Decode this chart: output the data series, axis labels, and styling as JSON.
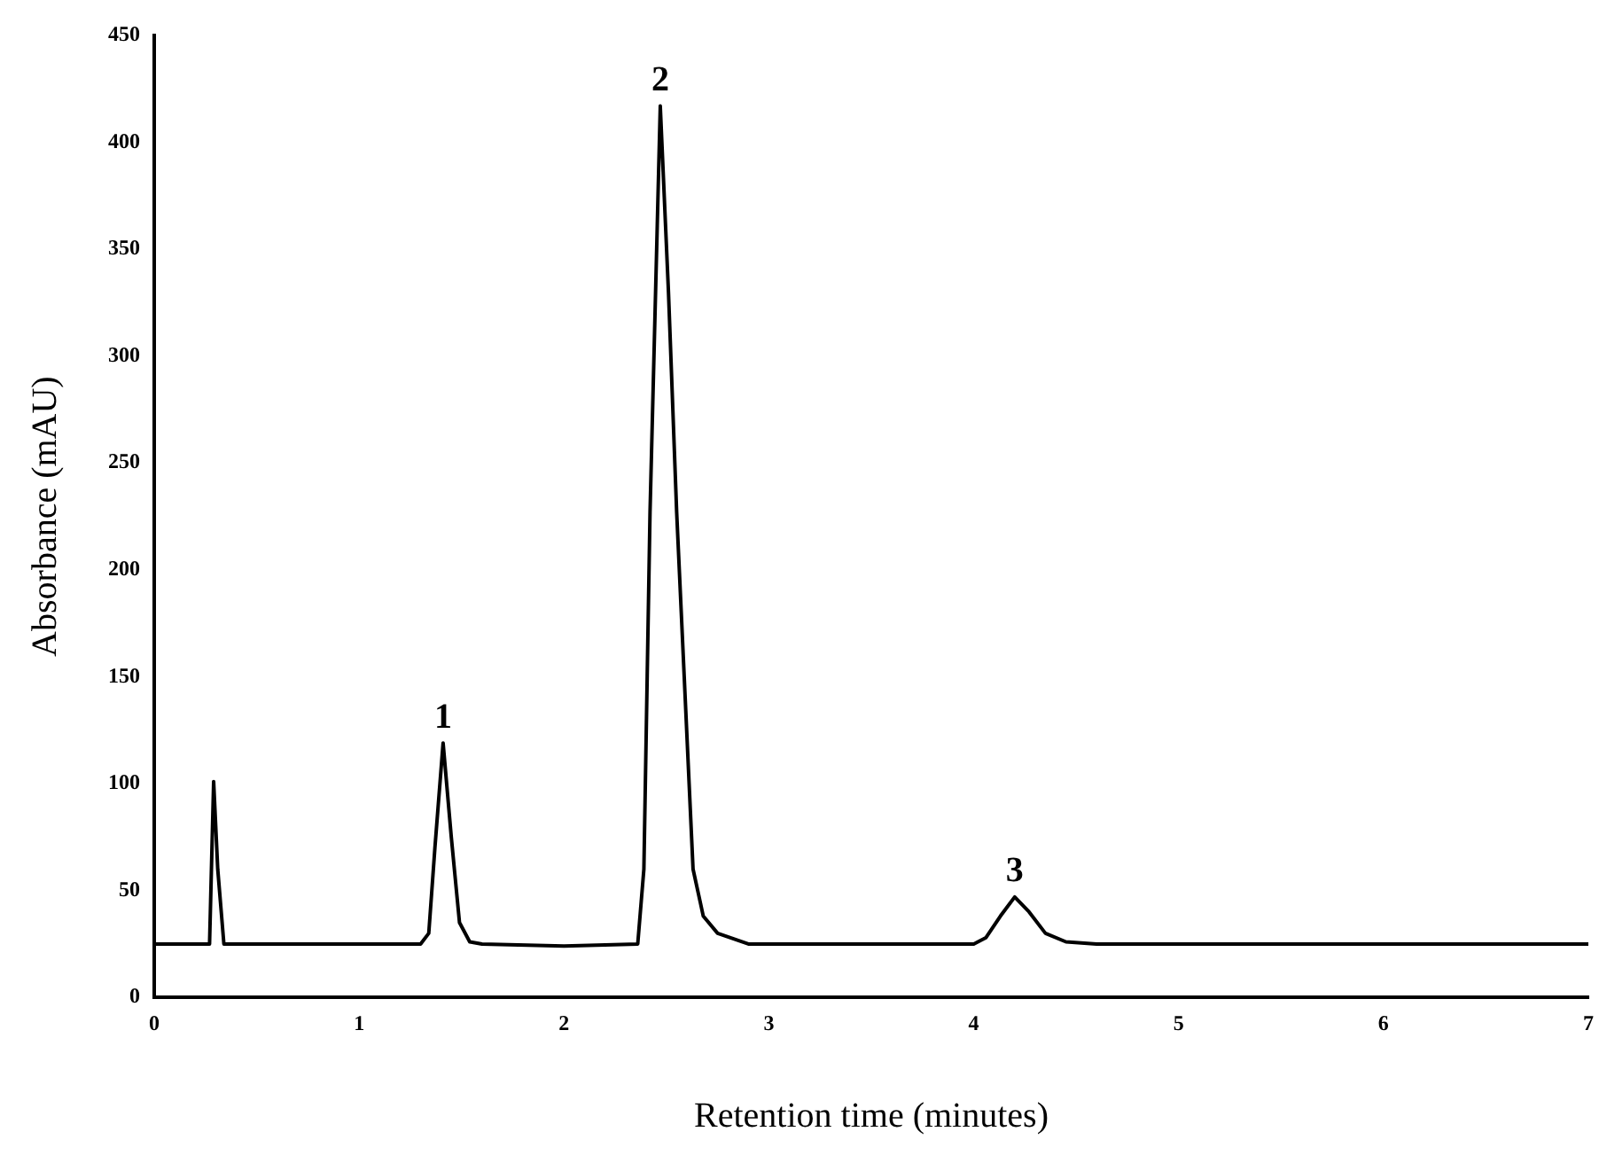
{
  "chart_data": {
    "type": "line",
    "xlabel": "Retention time (minutes)",
    "ylabel": "Absorbance (mAU)",
    "x": [
      0,
      0.27,
      0.29,
      0.31,
      0.34,
      1.0,
      1.3,
      1.34,
      1.37,
      1.41,
      1.45,
      1.49,
      1.54,
      1.6,
      2.0,
      2.36,
      2.39,
      2.42,
      2.47,
      2.51,
      2.55,
      2.63,
      2.68,
      2.75,
      2.9,
      4.0,
      4.06,
      4.13,
      4.2,
      4.27,
      4.35,
      4.45,
      4.6,
      7
    ],
    "series": [
      {
        "color": "#000000",
        "values": [
          25,
          25,
          101,
          60,
          25,
          25,
          25,
          30,
          70,
          119,
          75,
          35,
          26,
          25,
          24,
          25,
          60,
          227,
          417,
          330,
          227,
          60,
          38,
          30,
          25,
          25,
          28,
          38,
          47,
          40,
          30,
          26,
          25,
          25
        ]
      }
    ],
    "xlim": [
      0,
      7
    ],
    "xticks": [
      0,
      1,
      2,
      3,
      4,
      5,
      6,
      7
    ],
    "ylim": [
      0,
      450
    ],
    "yticks": [
      0,
      50,
      100,
      150,
      200,
      250,
      300,
      350,
      400,
      450
    ],
    "annotations": [
      {
        "text": "1",
        "x": 1.41,
        "y": 119
      },
      {
        "text": "2",
        "x": 2.47,
        "y": 417
      },
      {
        "text": "3",
        "x": 4.2,
        "y": 47
      }
    ],
    "grid": false,
    "legend": false,
    "marker": "none",
    "line_style": "solid"
  }
}
